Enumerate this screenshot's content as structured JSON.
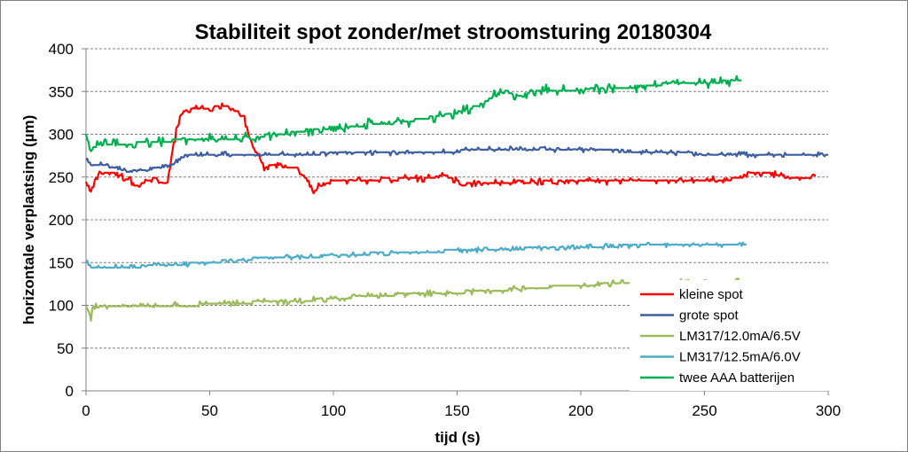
{
  "chart_data": {
    "type": "line",
    "title": "Stabiliteit spot zonder/met stroomsturing 20180304",
    "xlabel": "tijd (s)",
    "ylabel": "horizontale verplaatsing (µm)",
    "xlim": [
      0,
      300
    ],
    "ylim": [
      0,
      400
    ],
    "x_ticks": [
      0,
      50,
      100,
      150,
      200,
      250,
      300
    ],
    "y_ticks": [
      0,
      50,
      100,
      150,
      200,
      250,
      300,
      350,
      400
    ],
    "grid": "horizontal dashed",
    "legend_position": "inside-bottom-right",
    "series": [
      {
        "name": "kleine spot",
        "color": "#ff0000",
        "x": [
          0,
          2,
          4,
          6,
          10,
          15,
          18,
          20,
          25,
          28,
          30,
          33,
          34,
          36,
          38,
          40,
          45,
          50,
          55,
          60,
          62,
          65,
          68,
          70,
          72,
          75,
          80,
          85,
          90,
          92,
          95,
          100,
          105,
          110,
          115,
          120,
          125,
          130,
          135,
          140,
          145,
          150,
          152,
          155,
          160,
          165,
          170,
          175,
          180,
          185,
          190,
          200,
          210,
          220,
          230,
          240,
          250,
          260,
          265,
          270,
          275,
          280,
          285,
          290,
          295
        ],
        "y": [
          245,
          230,
          250,
          255,
          255,
          250,
          245,
          240,
          245,
          250,
          240,
          245,
          262,
          300,
          320,
          328,
          330,
          330,
          333,
          328,
          325,
          305,
          280,
          275,
          260,
          265,
          262,
          262,
          245,
          232,
          242,
          245,
          245,
          248,
          245,
          248,
          247,
          250,
          248,
          250,
          252,
          245,
          240,
          242,
          243,
          244,
          243,
          245,
          244,
          245,
          245,
          246,
          245,
          245,
          246,
          247,
          247,
          247,
          250,
          255,
          255,
          252,
          250,
          248,
          252
        ]
      },
      {
        "name": "grote spot",
        "color": "#3d5e9e",
        "x": [
          0,
          2,
          5,
          10,
          15,
          20,
          25,
          30,
          35,
          38,
          40,
          45,
          50,
          55,
          60,
          65,
          70,
          75,
          80,
          90,
          100,
          110,
          120,
          130,
          140,
          150,
          155,
          160,
          170,
          180,
          190,
          200,
          210,
          220,
          230,
          240,
          250,
          260,
          270,
          280,
          290,
          300
        ],
        "y": [
          270,
          265,
          265,
          262,
          258,
          257,
          260,
          262,
          265,
          270,
          275,
          277,
          276,
          277,
          276,
          277,
          277,
          277,
          277,
          277,
          278,
          278,
          278,
          278,
          279,
          280,
          283,
          283,
          283,
          283,
          282,
          282,
          281,
          280,
          280,
          278,
          277,
          277,
          276,
          276,
          276,
          276
        ]
      },
      {
        "name": "LM317/12.0mA/6.5V",
        "color": "#9bbb59",
        "x": [
          0,
          1,
          2,
          3,
          5,
          10,
          20,
          30,
          40,
          50,
          60,
          70,
          80,
          90,
          100,
          110,
          120,
          130,
          140,
          150,
          160,
          170,
          180,
          190,
          200,
          210,
          220,
          230,
          240,
          250,
          260,
          265
        ],
        "y": [
          98,
          92,
          85,
          100,
          98,
          99,
          100,
          100,
          100,
          101,
          102,
          104,
          105,
          106,
          108,
          110,
          112,
          113,
          114,
          115,
          116,
          118,
          120,
          122,
          124,
          125,
          126,
          126,
          127,
          127,
          127,
          128
        ]
      },
      {
        "name": "LM317/12.5mA/6.0V",
        "color": "#4bacc6",
        "x": [
          0,
          1,
          2,
          5,
          10,
          20,
          30,
          40,
          50,
          60,
          70,
          80,
          90,
          100,
          110,
          120,
          130,
          140,
          150,
          160,
          170,
          180,
          190,
          200,
          210,
          220,
          230,
          240,
          250,
          260,
          267
        ],
        "y": [
          152,
          148,
          145,
          145,
          145,
          145,
          147,
          148,
          150,
          153,
          155,
          156,
          157,
          158,
          160,
          161,
          162,
          163,
          164,
          165,
          166,
          167,
          167,
          168,
          169,
          170,
          170,
          170,
          170,
          171,
          172
        ]
      },
      {
        "name": "twee AAA batterijen",
        "color": "#00b050",
        "x": [
          0,
          1,
          2,
          5,
          10,
          15,
          20,
          30,
          40,
          50,
          60,
          70,
          80,
          90,
          100,
          110,
          120,
          130,
          140,
          150,
          155,
          160,
          165,
          170,
          175,
          180,
          185,
          190,
          200,
          210,
          220,
          230,
          240,
          250,
          260,
          265
        ],
        "y": [
          300,
          290,
          282,
          288,
          288,
          288,
          290,
          292,
          293,
          294,
          295,
          298,
          300,
          305,
          308,
          310,
          313,
          315,
          320,
          325,
          330,
          335,
          345,
          350,
          345,
          350,
          352,
          350,
          352,
          355,
          355,
          358,
          360,
          360,
          362,
          362
        ]
      }
    ]
  }
}
